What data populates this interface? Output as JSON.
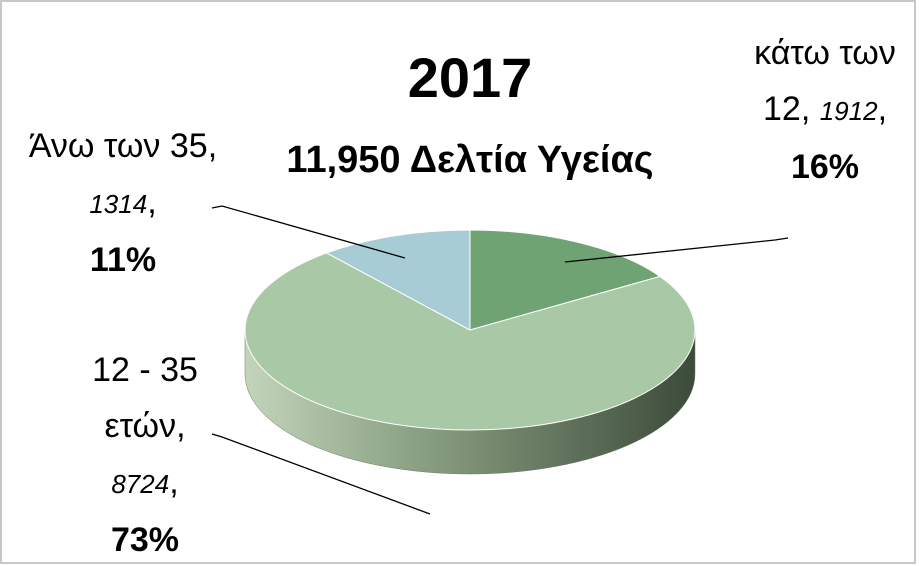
{
  "chart_data": {
    "type": "pie",
    "title": "2017",
    "subtitle": "11,950 Δελτία Υγείας",
    "categories": [
      "κάτω των 12",
      "12 - 35 ετών",
      "Άνω των 35"
    ],
    "values": [
      1912,
      8724,
      1314
    ],
    "percent_labels": [
      "16%",
      "73%",
      "11%"
    ],
    "separator": ",",
    "colors": [
      "#6fa374",
      "#a9c8a6",
      "#a8ccd6"
    ],
    "three_d": true
  }
}
